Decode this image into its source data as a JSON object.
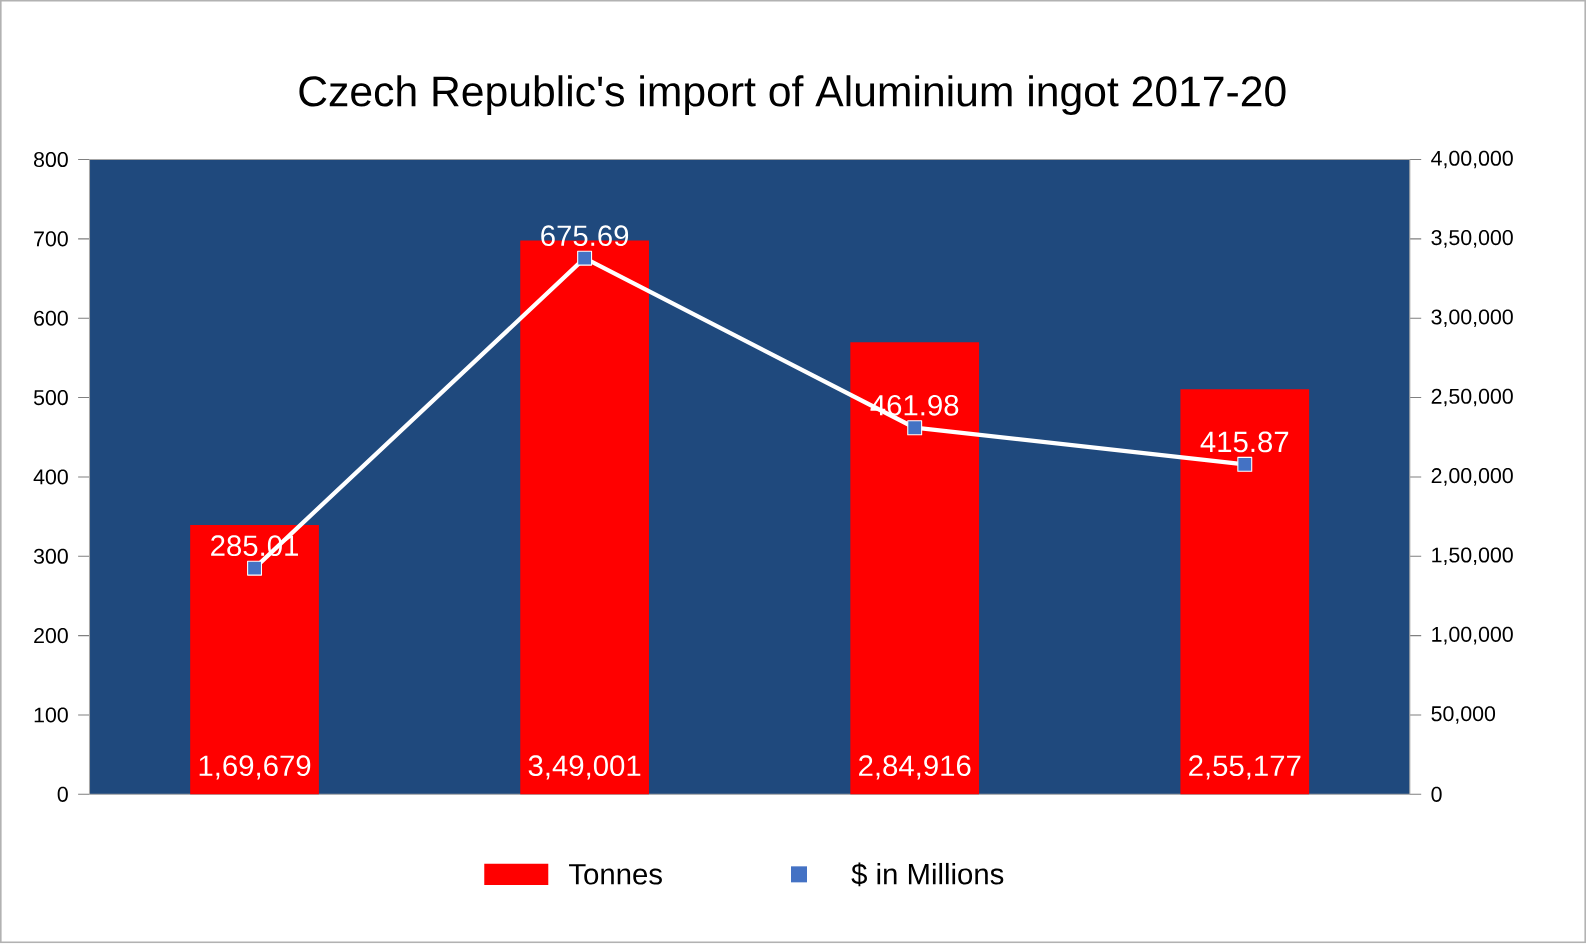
{
  "chart_data": {
    "type": "bar",
    "title": "Czech Republic's import of Aluminium ingot 2017-20",
    "categories": [
      null,
      null,
      null,
      null
    ],
    "series": [
      {
        "name": "Tonnes",
        "axis": "y2",
        "color": "#ff0000",
        "values": [
          169679,
          349001,
          284916,
          255177
        ],
        "value_labels": [
          "1,69,679",
          "3,49,001",
          "2,84,916",
          "2,55,177"
        ]
      },
      {
        "name": "$ in Millions",
        "type": "line",
        "color": "#4472c4",
        "values": [
          285.01,
          675.69,
          461.98,
          415.87
        ],
        "value_labels": [
          "285.01",
          "675.69",
          "461.98",
          "415.87"
        ]
      }
    ],
    "ylim": [
      0,
      800
    ],
    "yticks": [
      0,
      100,
      200,
      300,
      400,
      500,
      600,
      700,
      800
    ],
    "y2lim": [
      0,
      400000
    ],
    "y2ticks": [
      0,
      {
        "value": 50000,
        "label": "50,000"
      },
      {
        "value": 100000,
        "label": "1,00,000"
      },
      {
        "value": 150000,
        "label": "1,50,000"
      },
      {
        "value": 200000,
        "label": "2,00,000"
      },
      {
        "value": 250000,
        "label": "2,50,000"
      },
      {
        "value": 300000,
        "label": "3,00,000"
      },
      {
        "value": 350000,
        "label": "3,50,000"
      },
      {
        "value": 400000,
        "label": "4,00,000"
      }
    ],
    "marker": "square",
    "legend": "bottom"
  }
}
